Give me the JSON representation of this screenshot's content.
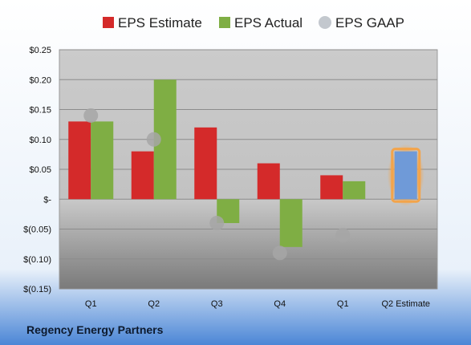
{
  "colors": {
    "estimate": "#d42a2a",
    "actual": "#7fae44",
    "gaap": "#b8bec6",
    "next_estimate": "#6f9ad8",
    "highlight": "#f3a44a",
    "footer_text": "#0d1a2e"
  },
  "legend": [
    "EPS Estimate",
    "EPS Actual",
    "EPS GAAP"
  ],
  "footer": {
    "company": "Regency Energy Partners"
  },
  "chart_data": {
    "type": "bar",
    "categories": [
      "Q1",
      "Q2",
      "Q3",
      "Q4",
      "Q1",
      "Q2 Estimate"
    ],
    "series": [
      {
        "name": "EPS Estimate",
        "values": [
          0.13,
          0.08,
          0.12,
          0.06,
          0.04,
          null
        ]
      },
      {
        "name": "EPS Actual",
        "values": [
          0.13,
          0.2,
          -0.04,
          -0.08,
          0.03,
          0.08
        ]
      },
      {
        "name": "EPS GAAP",
        "values": [
          0.14,
          0.1,
          -0.04,
          -0.09,
          -0.06,
          null
        ]
      }
    ],
    "ylim": [
      -0.15,
      0.25
    ],
    "yticks": [
      0.25,
      0.2,
      0.15,
      0.1,
      0.05,
      0,
      -0.05,
      -0.1,
      -0.15
    ],
    "ytick_labels": [
      "$0.25",
      "$0.20",
      "$0.15",
      "$0.10",
      "$0.05",
      "$-",
      "$(0.05)",
      "$(0.10)",
      "$(0.15)"
    ],
    "gaap_style": "marker",
    "last_category_is_estimate": true,
    "grid": true,
    "legend_position": "top"
  }
}
